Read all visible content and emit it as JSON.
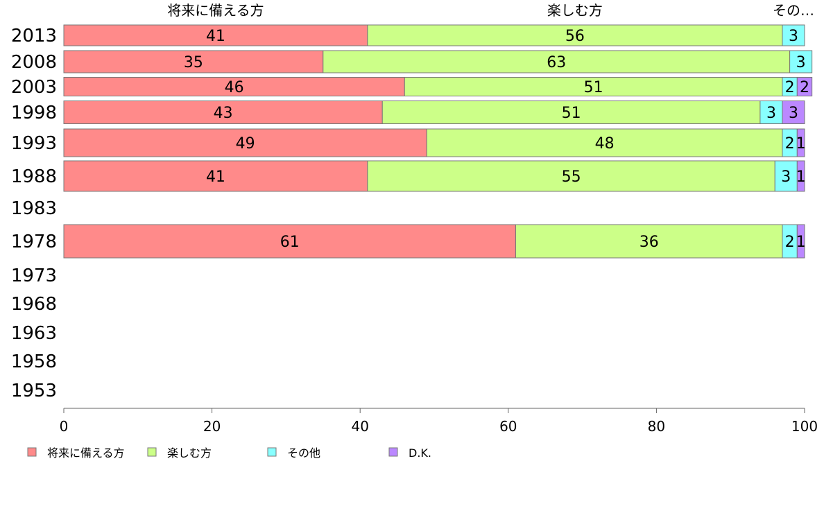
{
  "chart_data": {
    "type": "bar",
    "orientation": "horizontal",
    "stacked": true,
    "categories": [
      "2013",
      "2008",
      "2003",
      "1998",
      "1993",
      "1988",
      "1983",
      "1978",
      "1973",
      "1968",
      "1963",
      "1958",
      "1953"
    ],
    "series": [
      {
        "name": "将来に備える方",
        "color": "#ff8a8a",
        "values": [
          41,
          35,
          46,
          43,
          49,
          41,
          null,
          61,
          null,
          null,
          null,
          null,
          null
        ]
      },
      {
        "name": "楽しむ方",
        "color": "#ccff88",
        "values": [
          56,
          63,
          51,
          51,
          48,
          55,
          null,
          36,
          null,
          null,
          null,
          null,
          null
        ]
      },
      {
        "name": "その他",
        "color": "#88ffff",
        "values": [
          3,
          3,
          2,
          3,
          2,
          3,
          null,
          2,
          null,
          null,
          null,
          null,
          null
        ]
      },
      {
        "name": "D.K.",
        "color": "#bb88ff",
        "values": [
          null,
          null,
          2,
          3,
          1,
          1,
          null,
          1,
          null,
          null,
          null,
          null,
          null
        ]
      }
    ],
    "top_labels": [
      "将来に備える方",
      "楽しむ方",
      "その…"
    ],
    "xlim": [
      0,
      100
    ],
    "xticks": [
      "0",
      "20",
      "40",
      "60",
      "80",
      "100"
    ],
    "legend": "bottom",
    "grid": false
  }
}
